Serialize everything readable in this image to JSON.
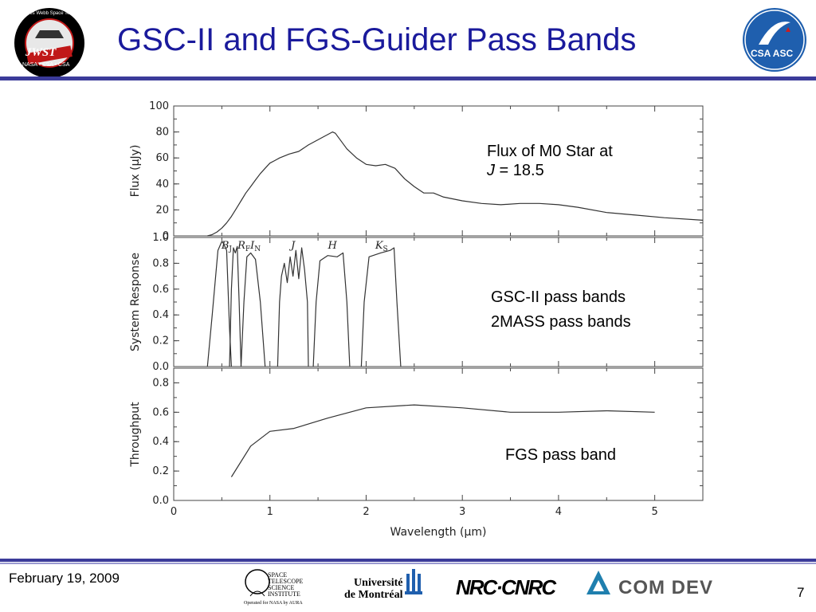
{
  "slide": {
    "title": "GSC-II and FGS-Guider Pass Bands",
    "date": "February 19, 2009",
    "page_number": "7",
    "accent_color": "#1a1a9c",
    "bar_color": "#3b3b9a"
  },
  "logos": {
    "left": {
      "name": "jwst-logo",
      "ring_text": "James Webb Space Telescope",
      "main_text": "JWST",
      "bottom_text": "NASA • ESA • CSA"
    },
    "right": {
      "name": "csa-asc-logo",
      "text": "CSA ASC"
    }
  },
  "sponsors": [
    {
      "name": "stsci-logo",
      "lines": [
        "SPACE",
        "TELESCOPE",
        "SCIENCE",
        "INSTITUTE"
      ],
      "sub": "Operated for NASA by AURA"
    },
    {
      "name": "universite-de-montreal-logo",
      "lines": [
        "Université",
        "de Montréal"
      ]
    },
    {
      "name": "nrc-cnrc-logo",
      "text": "NRC·CNRC"
    },
    {
      "name": "com-dev-logo",
      "text": "COM DEV"
    }
  ],
  "annotations": {
    "flux_line1": "Flux of M0 Star at",
    "flux_line2_italic": "J",
    "flux_line2_rest": " = 18.5",
    "gsc": "GSC-II pass bands",
    "twomass": "2MASS pass bands",
    "fgs": "FGS pass band"
  },
  "chart_data": [
    {
      "type": "line",
      "panel": "top",
      "ylabel": "Flux (μJy)",
      "xlim": [
        0,
        5.5
      ],
      "ylim": [
        0,
        100
      ],
      "yticks": [
        0,
        20,
        40,
        60,
        80,
        100
      ],
      "series": [
        {
          "x": [
            0.35,
            0.4,
            0.45,
            0.5,
            0.55,
            0.6,
            0.65,
            0.7,
            0.75,
            0.8,
            0.85,
            0.9,
            0.95,
            1.0,
            1.05,
            1.1,
            1.2,
            1.3,
            1.4,
            1.5,
            1.55,
            1.6,
            1.65,
            1.68,
            1.72,
            1.8,
            1.9,
            2.0,
            2.1,
            2.2,
            2.3,
            2.4,
            2.5,
            2.6,
            2.7,
            2.8,
            3.0,
            3.2,
            3.4,
            3.6,
            3.8,
            4.0,
            4.2,
            4.5,
            4.8,
            5.1,
            5.5
          ],
          "y": [
            0,
            1,
            3,
            6,
            10,
            15,
            21,
            27,
            33,
            38,
            43,
            48,
            52,
            56,
            58,
            60,
            63,
            65,
            70,
            74,
            76,
            78,
            80,
            79,
            75,
            67,
            60,
            55,
            54,
            55,
            52,
            44,
            38,
            33,
            33,
            30,
            27,
            25,
            24,
            25,
            25,
            24,
            22,
            18,
            16,
            14,
            12
          ]
        }
      ]
    },
    {
      "type": "line",
      "panel": "middle",
      "ylabel": "System Response",
      "xlim": [
        0,
        5.5
      ],
      "ylim": [
        0,
        1.0
      ],
      "yticks": [
        0.0,
        0.2,
        0.4,
        0.6,
        0.8,
        1.0
      ],
      "band_labels": [
        {
          "label": "B",
          "sub": "J",
          "x": 0.55
        },
        {
          "label": "R",
          "sub": "F",
          "x": 0.73
        },
        {
          "label": "I",
          "sub": "N",
          "x": 0.85
        },
        {
          "label": "J",
          "sub": "",
          "x": 1.24
        },
        {
          "label": "H",
          "sub": "",
          "x": 1.65
        },
        {
          "label": "K",
          "sub": "S",
          "x": 2.16
        }
      ],
      "series": [
        {
          "name": "BJ",
          "x": [
            0.35,
            0.4,
            0.46,
            0.5,
            0.52,
            0.55,
            0.58,
            0.6
          ],
          "y": [
            0,
            0.4,
            0.9,
            0.97,
            0.95,
            0.9,
            0.3,
            0
          ]
        },
        {
          "name": "RF",
          "x": [
            0.58,
            0.6,
            0.62,
            0.64,
            0.66,
            0.68,
            0.7
          ],
          "y": [
            0,
            0.6,
            0.92,
            0.88,
            0.93,
            0.5,
            0
          ]
        },
        {
          "name": "IN",
          "x": [
            0.7,
            0.73,
            0.76,
            0.8,
            0.85,
            0.9,
            0.95
          ],
          "y": [
            0,
            0.5,
            0.85,
            0.88,
            0.83,
            0.5,
            0
          ]
        },
        {
          "name": "J",
          "x": [
            1.08,
            1.1,
            1.12,
            1.15,
            1.18,
            1.21,
            1.24,
            1.27,
            1.3,
            1.33,
            1.36,
            1.39,
            1.4
          ],
          "y": [
            0,
            0.5,
            0.7,
            0.8,
            0.65,
            0.85,
            0.7,
            0.9,
            0.68,
            0.92,
            0.75,
            0.5,
            0
          ]
        },
        {
          "name": "H",
          "x": [
            1.45,
            1.48,
            1.52,
            1.6,
            1.7,
            1.76,
            1.8,
            1.83
          ],
          "y": [
            0,
            0.5,
            0.82,
            0.86,
            0.85,
            0.88,
            0.5,
            0
          ]
        },
        {
          "name": "KS",
          "x": [
            1.95,
            1.98,
            2.03,
            2.15,
            2.25,
            2.29,
            2.32,
            2.36
          ],
          "y": [
            0,
            0.5,
            0.85,
            0.88,
            0.9,
            0.92,
            0.5,
            0
          ]
        }
      ]
    },
    {
      "type": "line",
      "panel": "bottom",
      "ylabel": "Throughput",
      "xlabel": "Wavelength (μm)",
      "xlim": [
        0,
        5.5
      ],
      "ylim": [
        0,
        0.9
      ],
      "xticks": [
        0,
        1,
        2,
        3,
        4,
        5
      ],
      "yticks": [
        0.0,
        0.2,
        0.4,
        0.6,
        0.8
      ],
      "series": [
        {
          "name": "FGS",
          "x": [
            0.6,
            0.8,
            1.0,
            1.25,
            1.6,
            2.0,
            2.5,
            3.0,
            3.5,
            4.0,
            4.5,
            5.0
          ],
          "y": [
            0.16,
            0.37,
            0.47,
            0.49,
            0.56,
            0.63,
            0.65,
            0.63,
            0.6,
            0.6,
            0.61,
            0.6
          ]
        }
      ]
    }
  ]
}
